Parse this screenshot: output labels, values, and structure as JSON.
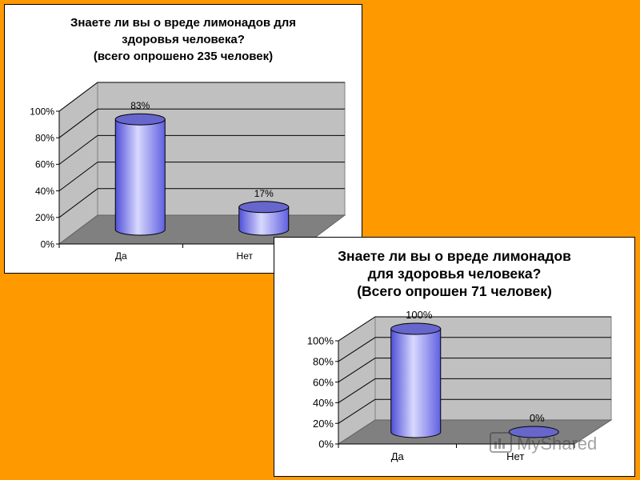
{
  "charts": [
    {
      "title_lines": [
        "Знаете ли вы о вреде лимонадов для",
        "здоровья человека?",
        "(всего опрошено 235 человек)"
      ],
      "y_tick_labels": [
        "0%",
        "20%",
        "40%",
        "60%",
        "80%",
        "100%"
      ],
      "categories": [
        "Да",
        "Нет"
      ],
      "data_labels": [
        "83%",
        "17%"
      ]
    },
    {
      "title_lines": [
        "Знаете ли вы о вреде лимонадов",
        "для здоровья человека?",
        "(Всего опрошен 71 человек)"
      ],
      "y_tick_labels": [
        "0%",
        "20%",
        "40%",
        "60%",
        "80%",
        "100%"
      ],
      "categories": [
        "Да",
        "Нет"
      ],
      "data_labels": [
        "100%",
        "0%"
      ]
    }
  ],
  "chart_data": [
    {
      "type": "bar",
      "title": "Знаете ли вы о вреде лимонадов для здоровья человека? (всего опрошено 235 человек)",
      "categories": [
        "Да",
        "Нет"
      ],
      "values": [
        83,
        17
      ],
      "ylim": [
        0,
        100
      ],
      "y_unit": "%",
      "grid": true,
      "style": "3D cylinder"
    },
    {
      "type": "bar",
      "title": "Знаете ли вы о вреде лимонадов для здоровья человека? (Всего опрошен 71 человек)",
      "categories": [
        "Да",
        "Нет"
      ],
      "values": [
        100,
        0
      ],
      "ylim": [
        0,
        100
      ],
      "y_unit": "%",
      "grid": true,
      "style": "3D cylinder"
    }
  ],
  "colors": {
    "background": "#FF9900",
    "bar_fill": "#8080FF",
    "bar_top": "#6666CC",
    "wall": "#C0C0C0",
    "floor": "#808080"
  },
  "watermark": {
    "text": "MyShared"
  }
}
